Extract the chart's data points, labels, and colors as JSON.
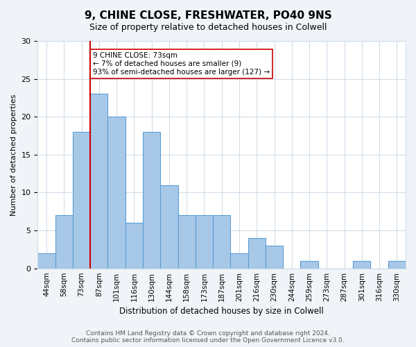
{
  "title": "9, CHINE CLOSE, FRESHWATER, PO40 9NS",
  "subtitle": "Size of property relative to detached houses in Colwell",
  "xlabel": "Distribution of detached houses by size in Colwell",
  "ylabel": "Number of detached properties",
  "bin_labels": [
    "44sqm",
    "58sqm",
    "73sqm",
    "87sqm",
    "101sqm",
    "116sqm",
    "130sqm",
    "144sqm",
    "158sqm",
    "173sqm",
    "187sqm",
    "201sqm",
    "216sqm",
    "230sqm",
    "244sqm",
    "259sqm",
    "273sqm",
    "287sqm",
    "301sqm",
    "316sqm",
    "330sqm"
  ],
  "bar_heights": [
    2,
    7,
    18,
    23,
    20,
    6,
    18,
    11,
    7,
    7,
    7,
    2,
    4,
    3,
    0,
    1,
    0,
    0,
    1,
    0,
    1
  ],
  "bar_color": "#a8c8e8",
  "bar_edge_color": "#5a9fd4",
  "vline_x_index": 2,
  "vline_color": "#cc0000",
  "annotation_text": "9 CHINE CLOSE: 73sqm\n← 7% of detached houses are smaller (9)\n93% of semi-detached houses are larger (127) →",
  "annotation_box_edgecolor": "#cc0000",
  "annotation_box_facecolor": "#ffffff",
  "ylim": [
    0,
    30
  ],
  "yticks": [
    0,
    5,
    10,
    15,
    20,
    25,
    30
  ],
  "footer_text": "Contains HM Land Registry data © Crown copyright and database right 2024.\nContains public sector information licensed under the Open Government Licence v3.0.",
  "bg_color": "#f0f4f8",
  "plot_bg_color": "#ffffff",
  "grid_color": "#d0dce8"
}
